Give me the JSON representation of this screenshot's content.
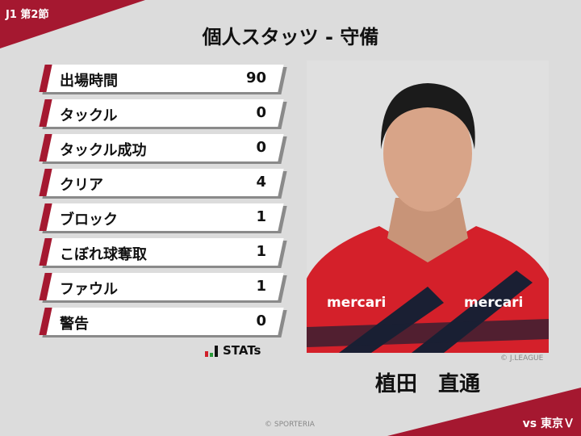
{
  "header": {
    "round": "J1 第2節",
    "title": "個人スタッツ - 守備"
  },
  "stats": [
    {
      "label": "出場時間",
      "value": "90"
    },
    {
      "label": "タックル",
      "value": "0"
    },
    {
      "label": "タックル成功",
      "value": "0"
    },
    {
      "label": "クリア",
      "value": "4"
    },
    {
      "label": "ブロック",
      "value": "1"
    },
    {
      "label": "こぼれ球奪取",
      "value": "1"
    },
    {
      "label": "ファウル",
      "value": "1"
    },
    {
      "label": "警告",
      "value": "0"
    }
  ],
  "logo": {
    "text": "STATs"
  },
  "player": {
    "name": "植田　直通",
    "photo_credit": "© J.LEAGUE",
    "sponsor": "mercari"
  },
  "footer": {
    "opponent": "vs 東京Ｖ",
    "credit": "© SPORTERIA"
  },
  "colors": {
    "accent": "#a51830",
    "background": "#dcdcdc"
  }
}
